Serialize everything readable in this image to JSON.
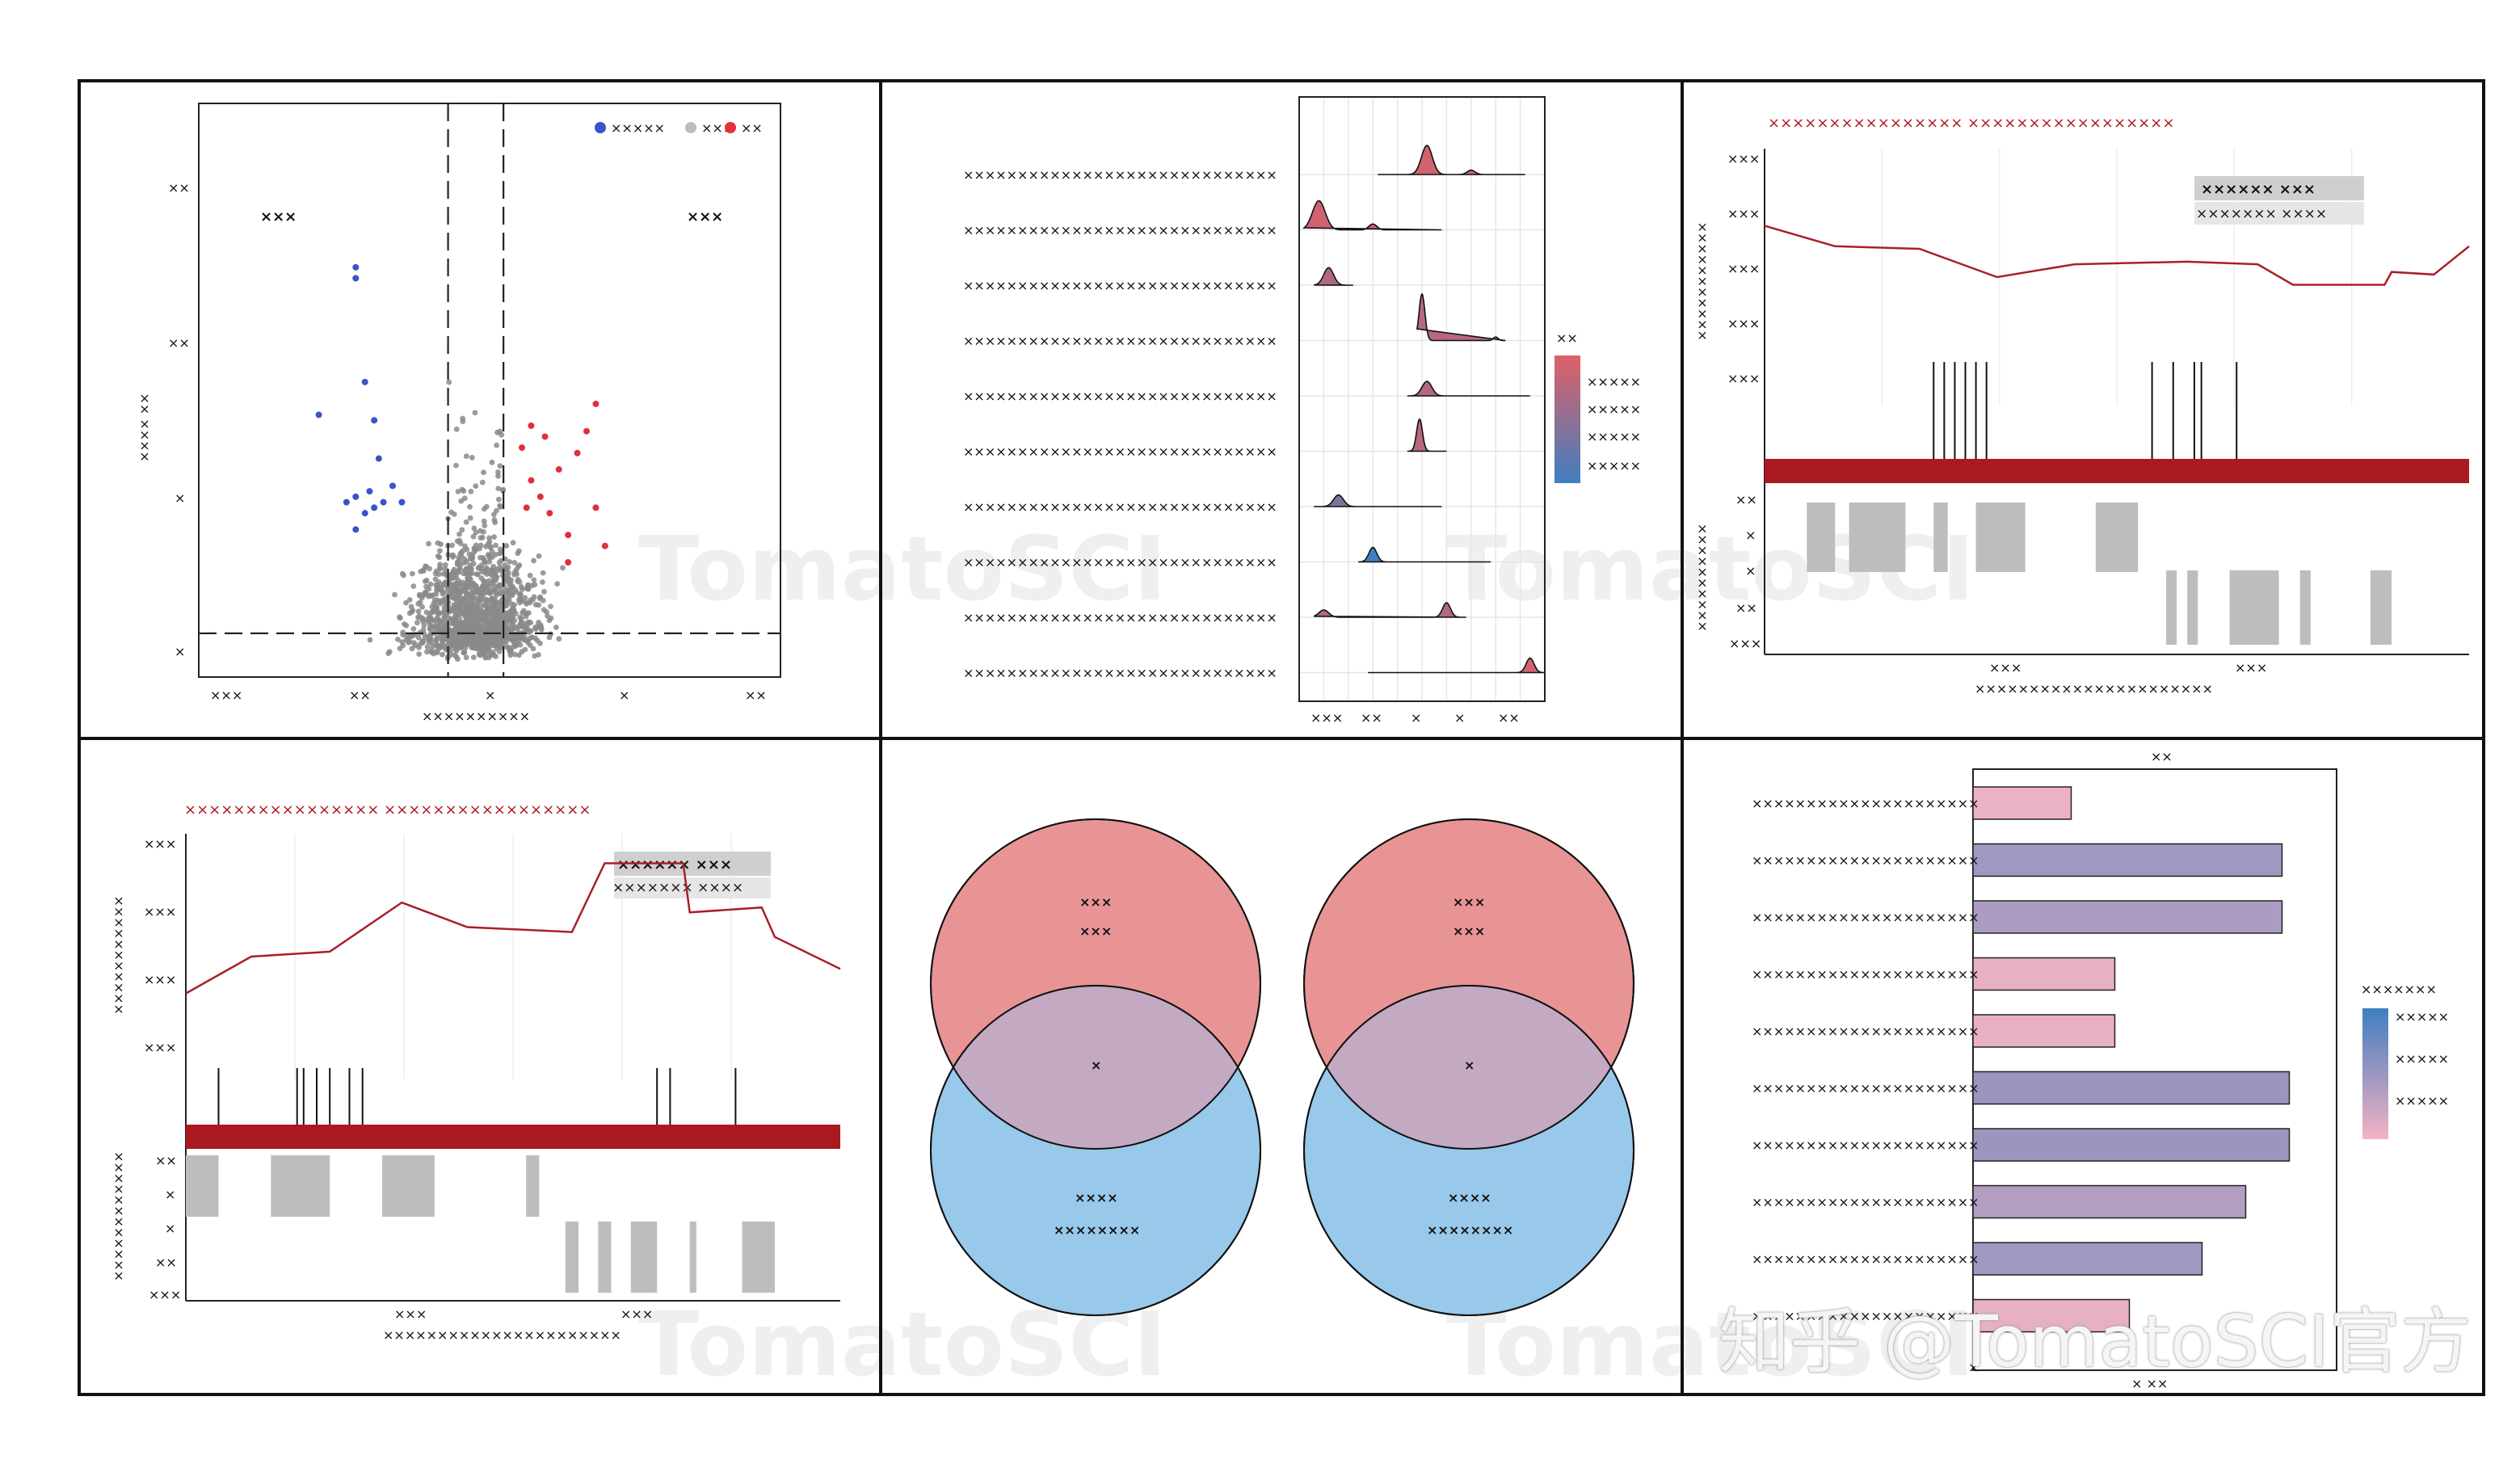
{
  "colors": {
    "down": "#3a53c8",
    "ns": "#8a8a8a",
    "up": "#e0303a",
    "ridge_high": "#e06066",
    "ridge_low": "#3f7fc0",
    "line": "#a82026",
    "ideogram": "#aa1820",
    "block": "#bdbdbd",
    "venn_a": "#e89495",
    "venn_b": "#98c9eb",
    "venn_overlap": "#c3a9c1",
    "bar_high": "#9b96c0",
    "bar_low": "#f4b4c4"
  },
  "volcano": {
    "legend": [
      "×××××",
      "×××",
      "××"
    ],
    "left_label": "×××",
    "right_label": "×××",
    "ylabel": "×××× ××",
    "xlabel": "××××××××××",
    "x_ticks": [
      "×××",
      "××",
      "×",
      "×",
      "××"
    ],
    "y_ticks": [
      "××",
      "××",
      "×",
      "×"
    ]
  },
  "ridge": {
    "rows": [
      "×××××××××××××××××××××××××××××",
      "×××××××××××××××××××××××××××××",
      "×××××××××××××××××××××××××××××",
      "×××××××××××××××××××××××××××××",
      "×××××××××××××××××××××××××××××",
      "×××××××××××××××××××××××××××××",
      "×××××××××××××××××××××××××××××",
      "×××××××××××××××××××××××××××××",
      "×××××××××××××××××××××××××××××",
      "×××××××××××××××××××××××××××××"
    ],
    "x_ticks": [
      "×××",
      "××",
      "×",
      "×",
      "××"
    ],
    "legend_title": "××",
    "legend_ticks": [
      "×××××",
      "×××××",
      "×××××",
      "×××××"
    ]
  },
  "gsea_top": {
    "title": "×××××××××××××××× ×××××××××××××××××",
    "legend_line1": "×××××× ×××",
    "legend_line2": "××××××× ××××",
    "y_ticks_top": [
      "×××",
      "×××",
      "×××",
      "×××",
      "×××"
    ],
    "ylabel_top": "×××××××××××",
    "y_ticks_bottom": [
      "××",
      "×",
      "×",
      "××",
      "×××"
    ],
    "ylabel_bottom": "××××××××××",
    "x_ticks": [
      "×××",
      "×××"
    ],
    "xlabel": "××××××××××××××××××××××"
  },
  "gsea_bottom": {
    "title": "×××××××××××××××× ×××××××××××××××××",
    "legend_line1": "×××××× ×××",
    "legend_line2": "××××××× ××××",
    "y_ticks_top": [
      "×××",
      "×××",
      "×××",
      "×××"
    ],
    "ylabel_top": "×××××××××××",
    "y_ticks_bottom": [
      "××",
      "×",
      "×",
      "××",
      "×××"
    ],
    "ylabel_bottom": "××××××××××××",
    "x_ticks": [
      "×××",
      "×××"
    ],
    "xlabel": "××××××××××××××××××××××"
  },
  "venn": {
    "left": {
      "a_line1": "×××",
      "a_line2": "×××",
      "overlap": "×",
      "b_line1": "××××",
      "b_line2": "××××××××"
    },
    "right": {
      "a_line1": "×××",
      "a_line2": "×××",
      "overlap": "×",
      "b_line1": "××××",
      "b_line2": "××××××××"
    }
  },
  "bar": {
    "top_label": "××",
    "rows": [
      "×××××××××××××××××××××",
      "×××××××××××××××××××××",
      "×××××××××××××××××××××",
      "×××××××××××××××××××××",
      "×××××××××××××××××××××",
      "×××××××××××××××××××××",
      "×××××××××××××××××××××",
      "×××××××××××××××××××××",
      "×××××××××××××××××××××",
      "×××××××××××××××××××××"
    ],
    "x_tick": "×",
    "xlabel": "× ××",
    "legend_title": "×××××××",
    "legend_ticks": [
      "×××××",
      "×××××",
      "×××××"
    ]
  },
  "watermark": {
    "text": "TomatoSCI",
    "corner": "知乎 @TomatoSCI官方"
  },
  "chart_data": [
    {
      "type": "scatter",
      "name": "volcano",
      "xlim": [
        -3,
        3.3
      ],
      "ylim": [
        0,
        10.5
      ],
      "thresholds": {
        "x": [
          -0.3,
          0.3
        ],
        "y": 0.8
      },
      "points_up": [
        [
          0.5,
          4.2
        ],
        [
          0.6,
          3.6
        ],
        [
          0.7,
          3.3
        ],
        [
          0.8,
          3.0
        ],
        [
          0.9,
          3.8
        ],
        [
          1.0,
          2.6
        ],
        [
          1.1,
          4.1
        ],
        [
          0.6,
          4.6
        ],
        [
          1.2,
          4.5
        ],
        [
          1.3,
          3.1
        ],
        [
          1.3,
          5.0
        ],
        [
          0.75,
          4.4
        ],
        [
          1.0,
          2.1
        ],
        [
          0.55,
          3.1
        ],
        [
          1.4,
          2.4
        ]
      ],
      "points_down": [
        [
          -1.3,
          7.5
        ],
        [
          -1.3,
          7.3
        ],
        [
          -1.2,
          5.4
        ],
        [
          -1.7,
          4.8
        ],
        [
          -1.1,
          4.7
        ],
        [
          -1.05,
          4.0
        ],
        [
          -1.15,
          3.4
        ],
        [
          -1.0,
          3.2
        ],
        [
          -1.3,
          3.3
        ],
        [
          -0.8,
          3.2
        ],
        [
          -1.2,
          3.0
        ],
        [
          -1.4,
          3.2
        ],
        [
          -1.3,
          2.7
        ],
        [
          -0.9,
          3.5
        ],
        [
          -1.1,
          3.1
        ]
      ],
      "ns_count": 1400
    },
    {
      "type": "area",
      "name": "ridgeline",
      "xlim": [
        -2.4,
        2.6
      ],
      "series": [
        {
          "x_range": [
            -0.8,
            2.2
          ],
          "peaks": [
            [
              0.2,
              1.0,
              0.11
            ],
            [
              1.1,
              0.15,
              0.08
            ]
          ],
          "tone": 0.9
        },
        {
          "x_range": [
            -2.3,
            0.5
          ],
          "peaks": [
            [
              -2.0,
              1.0,
              0.13
            ],
            [
              -0.9,
              0.2,
              0.08
            ]
          ],
          "tone": 0.9
        },
        {
          "x_range": [
            -2.1,
            -1.3
          ],
          "peaks": [
            [
              -1.8,
              0.6,
              0.1
            ]
          ],
          "tone": 0.7
        },
        {
          "x_range": [
            0.0,
            1.8
          ],
          "peaks": [
            [
              0.1,
              1.6,
              0.06
            ],
            [
              1.6,
              0.12,
              0.05
            ]
          ],
          "tone": 0.75
        },
        {
          "x_range": [
            -0.2,
            2.3
          ],
          "peaks": [
            [
              0.2,
              0.5,
              0.1
            ]
          ],
          "tone": 0.7
        },
        {
          "x_range": [
            -0.2,
            0.6
          ],
          "peaks": [
            [
              0.05,
              1.1,
              0.06
            ]
          ],
          "tone": 0.75
        },
        {
          "x_range": [
            -2.1,
            0.5
          ],
          "peaks": [
            [
              -1.6,
              0.4,
              0.1
            ]
          ],
          "tone": 0.4
        },
        {
          "x_range": [
            -1.2,
            1.5
          ],
          "peaks": [
            [
              -0.9,
              0.5,
              0.08
            ]
          ],
          "tone": 0.0
        },
        {
          "x_range": [
            -2.1,
            1.0
          ],
          "peaks": [
            [
              -1.9,
              0.25,
              0.1
            ],
            [
              0.6,
              0.5,
              0.08
            ]
          ],
          "tone": 0.7
        },
        {
          "x_range": [
            -1.0,
            2.6
          ],
          "peaks": [
            [
              2.3,
              0.5,
              0.08
            ]
          ],
          "tone": 0.9
        }
      ]
    },
    {
      "type": "line",
      "name": "gsea-top",
      "x": [
        0,
        0.1,
        0.22,
        0.33,
        0.44,
        0.6,
        0.7,
        0.75,
        0.82,
        0.88,
        0.89,
        0.95,
        1.0
      ],
      "values": [
        0.7,
        0.62,
        0.61,
        0.5,
        0.55,
        0.56,
        0.55,
        0.47,
        0.47,
        0.47,
        0.52,
        0.51,
        0.62
      ],
      "ylim": [
        0,
        1
      ],
      "hits": [
        0.24,
        0.255,
        0.27,
        0.285,
        0.3,
        0.315,
        0.55,
        0.58,
        0.61,
        0.62,
        0.67
      ],
      "blocks_up": [
        [
          0.06,
          0.1
        ],
        [
          0.12,
          0.2
        ],
        [
          0.24,
          0.26
        ],
        [
          0.3,
          0.37
        ],
        [
          0.47,
          0.53
        ]
      ],
      "blocks_down": [
        [
          0.57,
          0.585
        ],
        [
          0.6,
          0.615
        ],
        [
          0.66,
          0.73
        ],
        [
          0.76,
          0.775
        ],
        [
          0.86,
          0.89
        ]
      ]
    },
    {
      "type": "line",
      "name": "gsea-bottom",
      "x": [
        0,
        0.1,
        0.22,
        0.33,
        0.43,
        0.59,
        0.64,
        0.76,
        0.77,
        0.88,
        0.9,
        1.0
      ],
      "values": [
        0.35,
        0.5,
        0.52,
        0.72,
        0.62,
        0.6,
        0.88,
        0.88,
        0.68,
        0.7,
        0.58,
        0.45
      ],
      "ylim": [
        0,
        1
      ],
      "hits": [
        0.05,
        0.17,
        0.18,
        0.2,
        0.22,
        0.25,
        0.27,
        0.72,
        0.74,
        0.84
      ],
      "blocks_up": [
        [
          0.0,
          0.05
        ],
        [
          0.13,
          0.22
        ],
        [
          0.3,
          0.38
        ],
        [
          0.52,
          0.54
        ]
      ],
      "blocks_down": [
        [
          0.58,
          0.6
        ],
        [
          0.63,
          0.65
        ],
        [
          0.68,
          0.72
        ],
        [
          0.77,
          0.78
        ],
        [
          0.85,
          0.9
        ]
      ]
    },
    {
      "type": "bar",
      "name": "bar",
      "xlim": [
        0,
        1
      ],
      "values": [
        0.27,
        0.85,
        0.85,
        0.39,
        0.39,
        0.87,
        0.87,
        0.75,
        0.63,
        0.43
      ],
      "tone": [
        0.1,
        0.95,
        0.8,
        0.15,
        0.15,
        1.0,
        1.0,
        0.75,
        0.95,
        0.15
      ]
    }
  ]
}
